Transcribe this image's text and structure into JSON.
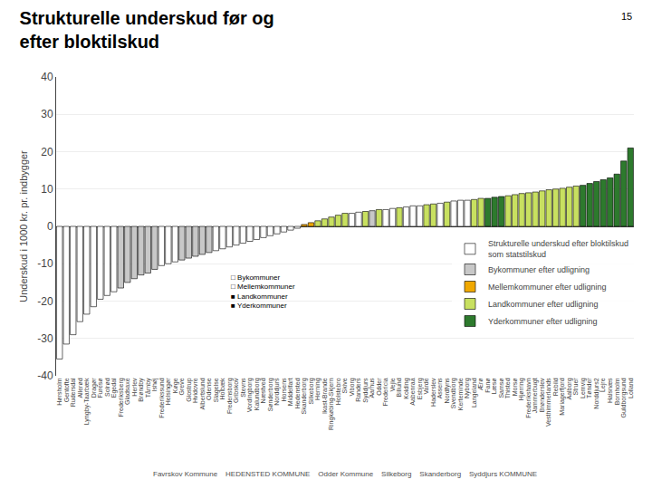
{
  "chart_data": {
    "type": "bar",
    "title": "Strukturelle underskud før og\nefter bloktilskud",
    "ylabel": "Underskud i 1000 kr. pr. indbygger",
    "categories": [
      "Hørsholm",
      "Gentofte",
      "Rudersdal",
      "Allerød",
      "Lyngby-Taarbæk",
      "Dragør",
      "Furesø",
      "Solrød",
      "Egedal",
      "Frederiksberg",
      "Gladsaxe",
      "Herlev",
      "Brøndby",
      "Tårnby",
      "Ishøj",
      "Frederikssund",
      "Helsingør",
      "Køge",
      "Greve",
      "Glostrup",
      "Hvidovre",
      "Albertslund",
      "Odense",
      "Slagelse",
      "Holbæk",
      "Fredensborg",
      "Gribskov",
      "Stevns",
      "Vordingborg",
      "Kalundborg",
      "Næstved",
      "Sønderborg",
      "Norddjurs",
      "Horsens",
      "Middelfart",
      "Hedensted",
      "Skanderborg",
      "Silkeborg",
      "Herning",
      "Ikast-Brande",
      "Ringkøbing-Skjern",
      "Holstebro",
      "Skive",
      "Viborg",
      "Randers",
      "Syddjurs",
      "Aarhus",
      "Odder",
      "Fredericia",
      "Vejle",
      "Billund",
      "Kolding",
      "Aabenraa",
      "Esbjerg",
      "Varde",
      "Haderslev",
      "Assens",
      "Nordfyns",
      "Svendborg",
      "Kerteminde",
      "Nyborg",
      "Langeland",
      "Ærø",
      "Fanø",
      "Læsø",
      "Samsø",
      "Thisted",
      "Morsø",
      "Hjørring",
      "Frederikshavn",
      "Jammerbugt",
      "Brønderslev",
      "Vesthimmerlands",
      "Rebild",
      "Mariagerfjord",
      "Aalborg",
      "Struer",
      "Lemvig",
      "Tønder",
      "Norddjurs2",
      "Lejre",
      "Halsnæs",
      "Bornholm",
      "Guldborgsund",
      "Lolland"
    ],
    "series": [
      {
        "name": "Strukturelle underskud efter bloktilskud\nsom statstilskud",
        "color": "#ffffff",
        "values": [
          -35.5,
          -31.5,
          -29.0,
          -25.5,
          -23.5,
          -21.5,
          -19.5,
          -18.5,
          -17.5,
          null,
          null,
          null,
          null,
          null,
          null,
          -10.5,
          -10.0,
          -9.5,
          null,
          null,
          null,
          null,
          null,
          -6.5,
          -6.0,
          -5.5,
          -5.0,
          -4.5,
          -4.0,
          -3.5,
          -3.0,
          -2.5,
          -2.0,
          -1.5,
          -1.0,
          -0.5,
          null,
          null,
          null,
          null,
          null,
          null,
          null,
          3.5,
          3.8,
          null,
          null,
          null,
          4.5,
          4.8,
          null,
          5.2,
          5.5,
          5.5,
          null,
          null,
          6.2,
          null,
          6.8,
          7.0,
          7.0,
          null,
          null,
          null,
          null,
          null,
          null,
          null,
          null,
          null,
          null,
          null,
          null,
          null,
          null,
          null,
          null,
          null,
          null,
          null,
          null,
          null,
          null,
          null,
          null
        ]
      },
      {
        "name": "Bykommuner efter udligning",
        "color": "#c8c8c8",
        "values": [
          null,
          null,
          null,
          null,
          null,
          null,
          null,
          null,
          null,
          -16.5,
          -15.0,
          -14.0,
          -13.0,
          -12.5,
          -11.5,
          null,
          null,
          null,
          -9.0,
          -8.5,
          -8.0,
          -7.5,
          -7.0,
          null,
          null,
          null,
          null,
          null,
          null,
          null,
          null,
          null,
          null,
          null,
          null,
          null,
          null,
          null,
          null,
          null,
          null,
          null,
          null,
          null,
          null,
          null,
          4.2,
          null,
          null,
          null,
          null,
          null,
          null,
          null,
          null,
          null,
          null,
          null,
          null,
          null,
          null,
          null,
          null,
          null,
          null,
          null,
          null,
          null,
          null,
          null,
          null,
          null,
          null,
          null,
          null,
          null,
          null,
          null,
          null,
          null,
          null,
          null,
          null,
          null,
          null
        ]
      },
      {
        "name": "Mellemkommuner efter udligning",
        "color": "#f0a800",
        "values": [
          null,
          null,
          null,
          null,
          null,
          null,
          null,
          null,
          null,
          null,
          null,
          null,
          null,
          null,
          null,
          null,
          null,
          null,
          null,
          null,
          null,
          null,
          null,
          null,
          null,
          null,
          null,
          null,
          null,
          null,
          null,
          null,
          null,
          null,
          null,
          null,
          0.5,
          1.0,
          null,
          null,
          null,
          null,
          null,
          null,
          null,
          null,
          null,
          null,
          null,
          null,
          null,
          null,
          null,
          null,
          null,
          null,
          null,
          null,
          null,
          null,
          null,
          null,
          null,
          null,
          null,
          null,
          null,
          null,
          null,
          null,
          null,
          null,
          null,
          null,
          null,
          null,
          null,
          null,
          null,
          null,
          null,
          null,
          null,
          null,
          null
        ]
      },
      {
        "name": "Landkommuner efter udligning",
        "color": "#c8e060",
        "values": [
          null,
          null,
          null,
          null,
          null,
          null,
          null,
          null,
          null,
          null,
          null,
          null,
          null,
          null,
          null,
          null,
          null,
          null,
          null,
          null,
          null,
          null,
          null,
          null,
          null,
          null,
          null,
          null,
          null,
          null,
          null,
          null,
          null,
          null,
          null,
          null,
          null,
          null,
          1.5,
          2.0,
          2.5,
          3.0,
          3.5,
          null,
          null,
          4.0,
          null,
          4.5,
          null,
          null,
          5.0,
          null,
          null,
          null,
          5.8,
          6.0,
          null,
          6.5,
          null,
          null,
          null,
          7.2,
          7.5,
          null,
          null,
          null,
          8.2,
          8.5,
          8.8,
          9.0,
          9.2,
          9.5,
          9.8,
          10.0,
          10.2,
          10.5,
          10.8,
          null,
          null,
          null,
          null,
          null,
          null,
          null,
          null
        ]
      },
      {
        "name": "Yderkommuner efter udligning",
        "color": "#2d7a2d",
        "values": [
          null,
          null,
          null,
          null,
          null,
          null,
          null,
          null,
          null,
          null,
          null,
          null,
          null,
          null,
          null,
          null,
          null,
          null,
          null,
          null,
          null,
          null,
          null,
          null,
          null,
          null,
          null,
          null,
          null,
          null,
          null,
          null,
          null,
          null,
          null,
          null,
          null,
          null,
          null,
          null,
          null,
          null,
          null,
          null,
          null,
          null,
          null,
          null,
          null,
          null,
          null,
          null,
          null,
          null,
          null,
          null,
          null,
          null,
          null,
          null,
          null,
          null,
          null,
          7.5,
          7.8,
          8.0,
          null,
          null,
          null,
          null,
          null,
          null,
          null,
          null,
          null,
          null,
          null,
          11.0,
          11.5,
          12.0,
          12.5,
          13.0,
          14.0,
          17.5,
          21.0
        ]
      }
    ],
    "ylim": [
      -40,
      40
    ],
    "yticks": [
      -40,
      -30,
      -20,
      -10,
      0,
      10,
      20,
      30,
      40
    ],
    "grid": true,
    "legend": "right",
    "annotations": [
      "15",
      "□ Bykommuner\n□ Mellemkommuner\n■ Landkommuner\n■ Yderkommuner",
      "Favrskov Kommune    HEDENSTED KOMMUNE    Odder Kommune    Silkeborg    Skanderborg    Syddjurs KOMMUNE"
    ]
  }
}
